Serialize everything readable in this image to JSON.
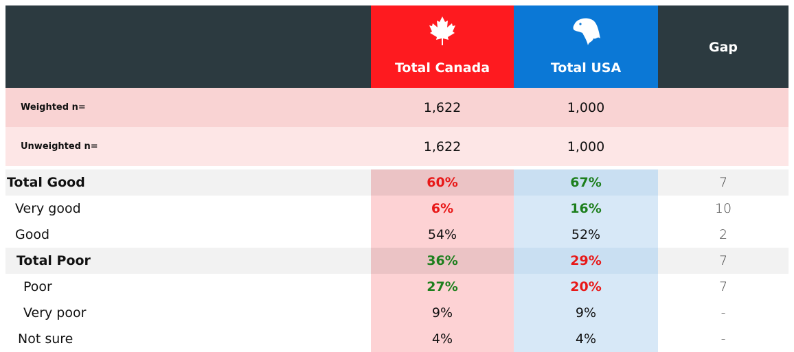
{
  "header": {
    "canada": "Total Canada",
    "usa": "Total USA",
    "gap": "Gap"
  },
  "sample_rows": [
    {
      "label": "Weighted n=",
      "canada": "1,622",
      "usa": "1,000"
    },
    {
      "label": "Unweighted n=",
      "canada": "1,622",
      "usa": "1,000"
    }
  ],
  "table": {
    "rows": [
      {
        "label": "Total Good",
        "bold": true,
        "canada": "60%",
        "usa": "67%",
        "gap": "7",
        "canada_color": "#e81818",
        "usa_color": "#1d7f1d"
      },
      {
        "label": "Very good",
        "bold": false,
        "canada": "6%",
        "usa": "16%",
        "gap": "10",
        "canada_color": "#e81818",
        "usa_color": "#1d7f1d"
      },
      {
        "label": "Good",
        "bold": false,
        "canada": "54%",
        "usa": "52%",
        "gap": "2"
      },
      {
        "label": "Total Poor",
        "bold": true,
        "canada": "36%",
        "usa": "29%",
        "gap": "7",
        "canada_color": "#1d7f1d",
        "usa_color": "#e81818"
      },
      {
        "label": "Poor",
        "bold": false,
        "canada": "27%",
        "usa": "20%",
        "gap": "7",
        "canada_color": "#1d7f1d",
        "usa_color": "#e81818"
      },
      {
        "label": "Very poor",
        "bold": false,
        "canada": "9%",
        "usa": "9%",
        "gap": "-"
      },
      {
        "label": "Not sure",
        "bold": false,
        "canada": "4%",
        "usa": "4%",
        "gap": "-"
      }
    ]
  }
}
